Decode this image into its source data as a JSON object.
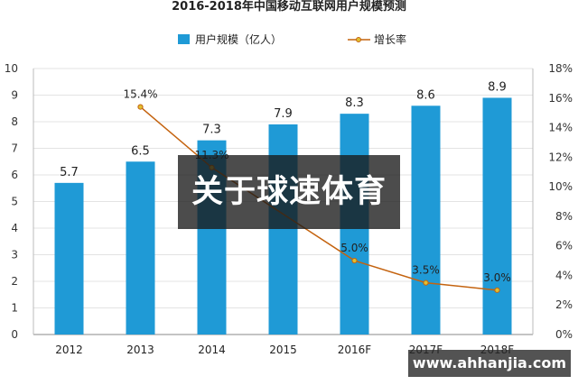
{
  "chart_data": {
    "type": "bar",
    "title": "2016-2018年中国移动互联网用户规模预测",
    "categories": [
      "2012",
      "2013",
      "2014",
      "2015",
      "2016F",
      "2017F",
      "2018F"
    ],
    "series": [
      {
        "name": "用户规模（亿人）",
        "type": "bar",
        "axis": "left",
        "color": "#1f9ad6",
        "values": [
          5.7,
          6.5,
          7.3,
          7.9,
          8.3,
          8.6,
          8.9
        ],
        "labels": [
          "5.7",
          "6.5",
          "7.3",
          "7.9",
          "8.3",
          "8.6",
          "8.9"
        ]
      },
      {
        "name": "增长率",
        "type": "line",
        "axis": "right",
        "color": "#c4630f",
        "values": [
          null,
          15.4,
          11.3,
          null,
          5.0,
          3.5,
          3.0
        ],
        "labels": [
          "",
          "15.4%",
          "11.3%",
          "",
          "5.0%",
          "3.5%",
          "3.0%"
        ]
      }
    ],
    "y_left": {
      "min": 0,
      "max": 10,
      "ticks": [
        "0",
        "1",
        "2",
        "3",
        "4",
        "5",
        "6",
        "7",
        "8",
        "9",
        "10"
      ]
    },
    "y_right": {
      "min": 0,
      "max": 18,
      "ticks": [
        "0%",
        "2%",
        "4%",
        "6%",
        "8%",
        "10%",
        "12%",
        "14%",
        "16%",
        "18%"
      ]
    },
    "legend_position": "top-center",
    "grid": true
  },
  "overlay": {
    "title": "关于球速体育",
    "watermark": "www.ahhanjia.com"
  }
}
